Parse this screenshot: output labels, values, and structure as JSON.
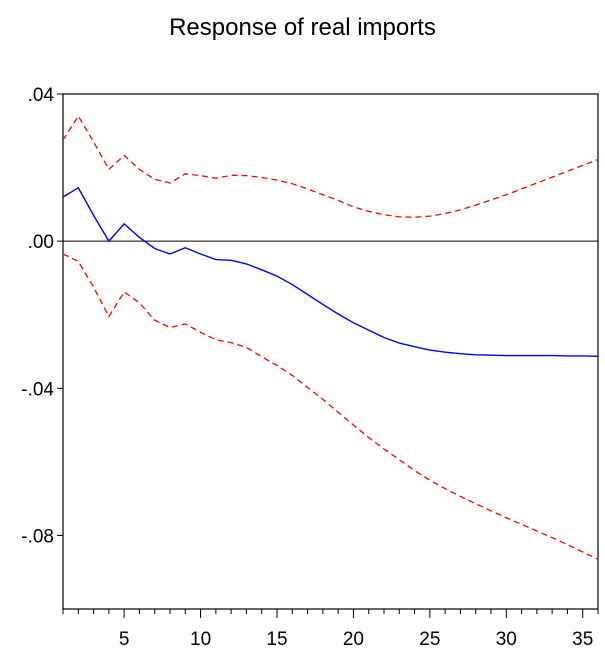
{
  "chart_data": {
    "type": "line",
    "title": "Response of real imports",
    "xlabel": "",
    "ylabel": "",
    "xlim": [
      1,
      36
    ],
    "ylim": [
      -0.1,
      0.04
    ],
    "x_ticks": [
      5,
      10,
      15,
      20,
      25,
      30,
      35
    ],
    "x_tick_labels": [
      "5",
      "10",
      "15",
      "20",
      "25",
      "30",
      "35"
    ],
    "y_ticks": [
      0.04,
      0.0,
      -0.04,
      -0.08
    ],
    "y_tick_labels": [
      ".04",
      ".00",
      "-.04",
      "-.08"
    ],
    "grid": false,
    "zero_line": true,
    "x": [
      1,
      2,
      3,
      4,
      5,
      6,
      7,
      8,
      9,
      10,
      11,
      12,
      13,
      14,
      15,
      16,
      17,
      18,
      19,
      20,
      21,
      22,
      23,
      24,
      25,
      26,
      27,
      28,
      29,
      30,
      31,
      32,
      33,
      34,
      35,
      36
    ],
    "series": [
      {
        "style": "solid",
        "color": "#0000ff",
        "values": [
          0.012,
          0.0145,
          0.007,
          0.0,
          0.0047,
          0.001,
          -0.002,
          -0.0035,
          -0.0018,
          -0.0035,
          -0.005,
          -0.0052,
          -0.0062,
          -0.0078,
          -0.0095,
          -0.0118,
          -0.0145,
          -0.0172,
          -0.0198,
          -0.0222,
          -0.0242,
          -0.0262,
          -0.0277,
          -0.0287,
          -0.0296,
          -0.0302,
          -0.0306,
          -0.0309,
          -0.031,
          -0.0311,
          -0.0311,
          -0.0311,
          -0.0311,
          -0.0312,
          -0.0312,
          -0.0313
        ]
      },
      {
        "style": "dashed",
        "color": "#ff0000",
        "values": [
          0.0275,
          0.034,
          0.027,
          0.0195,
          0.0233,
          0.0195,
          0.0168,
          0.0158,
          0.0183,
          0.0178,
          0.0171,
          0.0179,
          0.0178,
          0.0173,
          0.0166,
          0.0156,
          0.0142,
          0.0126,
          0.0111,
          0.0093,
          0.0081,
          0.0072,
          0.0066,
          0.0065,
          0.0068,
          0.0075,
          0.0085,
          0.0098,
          0.0112,
          0.0126,
          0.0142,
          0.0158,
          0.0174,
          0.019,
          0.0206,
          0.0222
        ]
      },
      {
        "style": "dashed",
        "color": "#ff0000",
        "values": [
          -0.0035,
          -0.0055,
          -0.0125,
          -0.0205,
          -0.0138,
          -0.0168,
          -0.0215,
          -0.0235,
          -0.0225,
          -0.0248,
          -0.0268,
          -0.0276,
          -0.0289,
          -0.0314,
          -0.0338,
          -0.0365,
          -0.0398,
          -0.043,
          -0.0465,
          -0.05,
          -0.0534,
          -0.0565,
          -0.0594,
          -0.0624,
          -0.065,
          -0.0673,
          -0.0694,
          -0.0714,
          -0.0733,
          -0.0752,
          -0.077,
          -0.0788,
          -0.0806,
          -0.0825,
          -0.0845,
          -0.0865
        ]
      }
    ]
  }
}
